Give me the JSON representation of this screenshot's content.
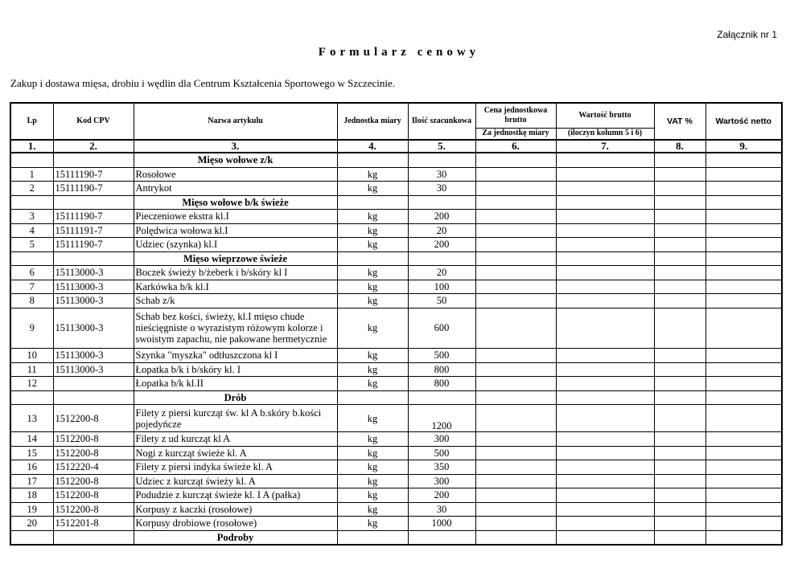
{
  "annex": "Załącznik nr 1",
  "title": "Formularz cenowy",
  "subtitle": "Zakup i dostawa mięsa, drobiu i wędlin dla Centrum Kształcenia Sportowego w Szczecinie.",
  "headers": {
    "lp": "Lp",
    "cpv": "Kod CPV",
    "name": "Nazwa artykulu",
    "unit": "Jednostka miary",
    "qty": "Ilość szacunkowa",
    "price": "Cena jednostkowa brutto",
    "price_sub": "Za jednostkę miary",
    "gross": "Wartość brutto",
    "gross_sub": "(iloczyn kolumn 5 i 6)",
    "vat": "VAT %",
    "net": "Wartość netto"
  },
  "column_numbers": [
    "1.",
    "2.",
    "3.",
    "4.",
    "5.",
    "6.",
    "7.",
    "8.",
    "9."
  ],
  "rows": [
    {
      "section": "Mięso wołowe z/k"
    },
    {
      "lp": "1",
      "cpv": "15111190-7",
      "name": "Rosołowe",
      "unit": "kg",
      "qty": "30"
    },
    {
      "lp": "2",
      "cpv": "15111190-7",
      "name": "Antrykot",
      "unit": "kg",
      "qty": "30"
    },
    {
      "section": "Mięso wołowe b/k świeże"
    },
    {
      "lp": "3",
      "cpv": "15111190-7",
      "name": "Pieczeniowe ekstra  kl.I",
      "unit": "kg",
      "qty": "200"
    },
    {
      "lp": "4",
      "cpv": "15111191-7",
      "name": "Polędwica wołowa kl.I",
      "unit": "kg",
      "qty": "20"
    },
    {
      "lp": "5",
      "cpv": "15111190-7",
      "name": "Udziec (szynka) kl.I",
      "unit": "kg",
      "qty": "200"
    },
    {
      "section": "Mięso wieprzowe  świeże"
    },
    {
      "lp": "6",
      "cpv": "15113000-3",
      "name": "Boczek świeży b/żeberk i b/skóry kl I",
      "unit": "kg",
      "qty": "20"
    },
    {
      "lp": "7",
      "cpv": "15113000-3",
      "name": "Karkówka b/k  kl.I",
      "unit": "kg",
      "qty": "100"
    },
    {
      "lp": "8",
      "cpv": "15113000-3",
      "name": "Schab z/k",
      "unit": "kg",
      "qty": "50"
    },
    {
      "lp": "9",
      "cpv": "15113000-3",
      "name": "Schab bez kości, świeży, kl.I mięso chude nieścięgniste o wyrazistym różowym kolorze i swoistym zapachu, nie pakowane hermetycznie",
      "unit": "kg",
      "qty": "600",
      "h": 3
    },
    {
      "lp": "10",
      "cpv": "15113000-3",
      "name": "Szynka \"myszka\" odtłuszczona kl I",
      "unit": "kg",
      "qty": "500"
    },
    {
      "lp": "11",
      "cpv": "15113000-3",
      "name": "Łopatka b/k  i b/skóry  kl. I",
      "unit": "kg",
      "qty": "800"
    },
    {
      "lp": "12",
      "cpv": "",
      "name": "Łopatka b/k kl.II",
      "unit": "kg",
      "qty": "800"
    },
    {
      "section": "Drób"
    },
    {
      "lp": "13",
      "cpv": "1512200-8",
      "name": "Filety z piersi kurcząt św. kl A b.skóry b.kości pojedyńcze",
      "unit": "kg",
      "qty": "1200",
      "h": 2
    },
    {
      "lp": "14",
      "cpv": "1512200-8",
      "name": "Filety z ud  kurcząt kl A",
      "unit": "kg",
      "qty": "300"
    },
    {
      "lp": "15",
      "cpv": "1512200-8",
      "name": "Nogi  z kurcząt świeże kl. A",
      "unit": "kg",
      "qty": "500"
    },
    {
      "lp": "16",
      "cpv": "1512220-4",
      "name": "Filety z  piersi indyka świeże kl. A",
      "unit": "kg",
      "qty": "350"
    },
    {
      "lp": "17",
      "cpv": "1512200-8",
      "name": "Udziec z kurcząt świeży kl. A",
      "unit": "kg",
      "qty": "300"
    },
    {
      "lp": "18",
      "cpv": "1512200-8",
      "name": "Podudzie z kurcząt świeże kl. I A (pałka)",
      "unit": "kg",
      "qty": "200"
    },
    {
      "lp": "19",
      "cpv": "1512200-8",
      "name": "Korpusy z kaczki (rosołowe)",
      "unit": "kg",
      "qty": "30"
    },
    {
      "lp": "20",
      "cpv": "1512201-8",
      "name": "Korpusy drobiowe (rosołowe)",
      "unit": "kg",
      "qty": "1000"
    },
    {
      "section": "Podroby"
    }
  ]
}
